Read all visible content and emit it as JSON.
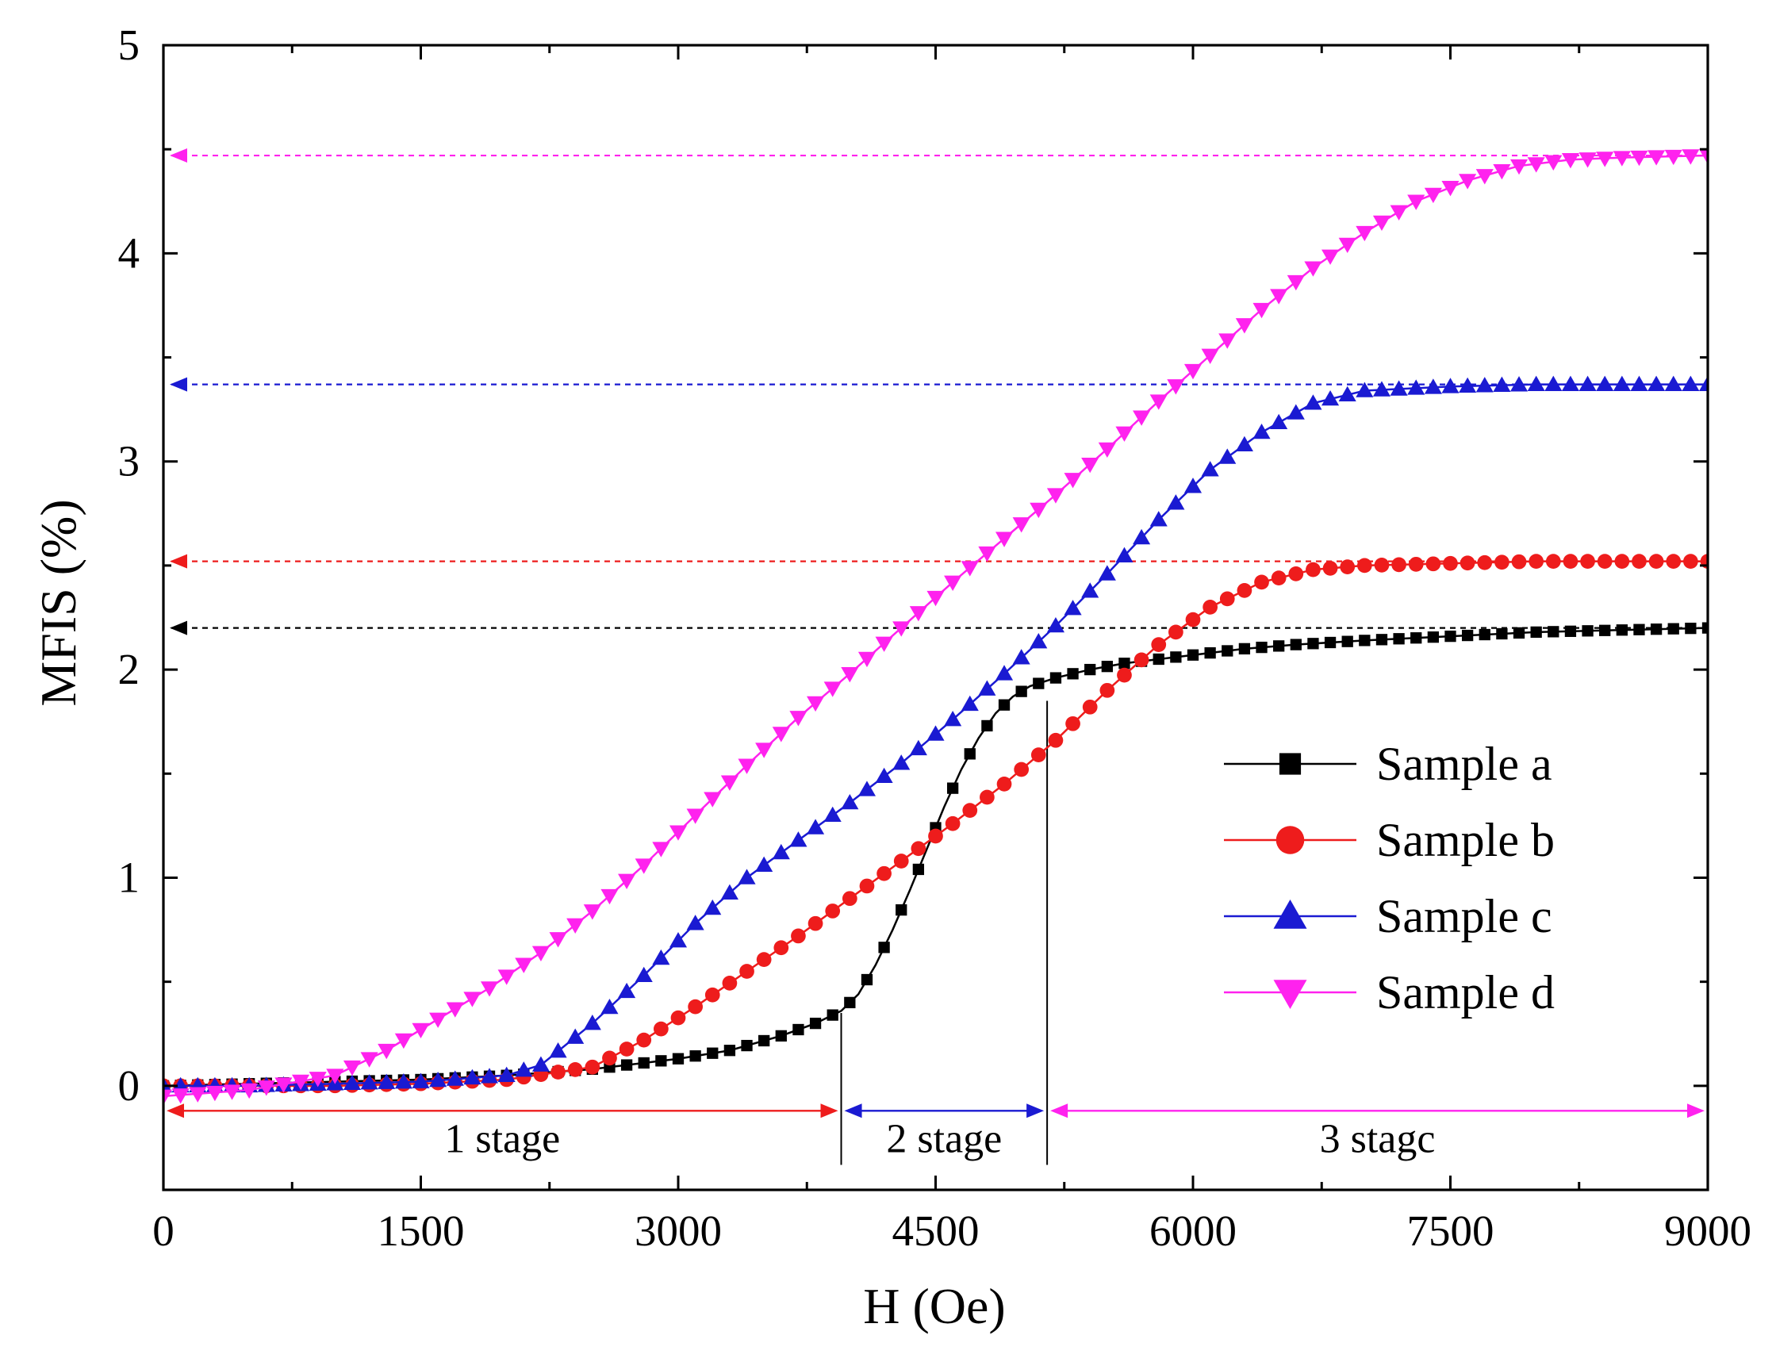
{
  "chart_data": {
    "type": "line",
    "title": "",
    "xlabel": "H (Oe)",
    "ylabel": "MFIS (%)",
    "xlim": [
      0,
      9000
    ],
    "ylim": [
      -0.5,
      5
    ],
    "xticks": [
      "0",
      "1500",
      "3000",
      "4500",
      "6000",
      "7500",
      "9000"
    ],
    "yticks": [
      "0",
      "1",
      "2",
      "3",
      "4",
      "5"
    ],
    "legend_position": "lower-right",
    "series": [
      {
        "name": "Sample a",
        "color": "#000000",
        "marker": "square",
        "x": [
          0,
          500,
          1000,
          1500,
          2000,
          2500,
          3000,
          3300,
          3600,
          3800,
          3950,
          4050,
          4150,
          4250,
          4350,
          4450,
          4550,
          4650,
          4750,
          4850,
          4950,
          5050,
          5200,
          5400,
          5600,
          5800,
          6000,
          6300,
          6600,
          7000,
          7500,
          8000,
          8500,
          9000
        ],
        "values": [
          0,
          0.01,
          0.02,
          0.03,
          0.05,
          0.08,
          0.13,
          0.17,
          0.24,
          0.3,
          0.36,
          0.44,
          0.58,
          0.75,
          0.94,
          1.14,
          1.34,
          1.52,
          1.67,
          1.79,
          1.87,
          1.92,
          1.96,
          2.0,
          2.03,
          2.05,
          2.07,
          2.1,
          2.12,
          2.14,
          2.16,
          2.18,
          2.19,
          2.2
        ]
      },
      {
        "name": "Sample b",
        "color": "#ee1c1c",
        "marker": "circle",
        "x": [
          0,
          500,
          1000,
          1500,
          2000,
          2500,
          2800,
          3100,
          3400,
          3700,
          4000,
          4300,
          4600,
          4900,
          5200,
          5500,
          5800,
          6100,
          6400,
          6700,
          7000,
          7500,
          8000,
          8500,
          9000
        ],
        "values": [
          0,
          0,
          0,
          0.01,
          0.03,
          0.09,
          0.22,
          0.38,
          0.55,
          0.72,
          0.9,
          1.08,
          1.26,
          1.45,
          1.66,
          1.9,
          2.12,
          2.3,
          2.42,
          2.48,
          2.5,
          2.51,
          2.52,
          2.52,
          2.52
        ]
      },
      {
        "name": "Sample c",
        "color": "#1a1ad2",
        "marker": "triangle-up",
        "x": [
          0,
          500,
          1000,
          1500,
          2000,
          2200,
          2500,
          2800,
          3100,
          3400,
          3700,
          4000,
          4300,
          4600,
          4900,
          5200,
          5500,
          5800,
          6100,
          6400,
          6700,
          7000,
          7500,
          8000,
          8500,
          9000
        ],
        "values": [
          0,
          0,
          0.01,
          0.02,
          0.05,
          0.1,
          0.3,
          0.53,
          0.78,
          1.0,
          1.18,
          1.36,
          1.55,
          1.76,
          1.98,
          2.21,
          2.46,
          2.72,
          2.96,
          3.14,
          3.28,
          3.34,
          3.36,
          3.37,
          3.37,
          3.37
        ]
      },
      {
        "name": "Sample d",
        "color": "#ff22ee",
        "marker": "triangle-down",
        "x": [
          0,
          500,
          1000,
          1300,
          1600,
          1900,
          2200,
          2500,
          2800,
          3100,
          3400,
          3700,
          4000,
          4300,
          4600,
          4900,
          5200,
          5500,
          5800,
          6100,
          6400,
          6700,
          7000,
          7300,
          7600,
          7900,
          8200,
          8500,
          9000
        ],
        "values": [
          -0.05,
          -0.02,
          0.05,
          0.17,
          0.32,
          0.47,
          0.64,
          0.84,
          1.06,
          1.3,
          1.54,
          1.77,
          1.98,
          2.2,
          2.42,
          2.63,
          2.84,
          3.06,
          3.29,
          3.51,
          3.73,
          3.93,
          4.1,
          4.25,
          4.35,
          4.42,
          4.45,
          4.46,
          4.47
        ]
      }
    ],
    "reference_lines": [
      {
        "series": "Sample a",
        "y": 2.2,
        "color": "#000000"
      },
      {
        "series": "Sample b",
        "y": 2.52,
        "color": "#ee1c1c"
      },
      {
        "series": "Sample c",
        "y": 3.37,
        "color": "#1a1ad2"
      },
      {
        "series": "Sample d",
        "y": 4.47,
        "color": "#ff22ee"
      }
    ],
    "stage_boundaries": [
      3950,
      5150
    ],
    "stages": [
      {
        "label": "1 stage",
        "from": 0,
        "to": 3950,
        "color": "#ee1c1c"
      },
      {
        "label": "2 stage",
        "from": 3950,
        "to": 5150,
        "color": "#1a1ad2"
      },
      {
        "label": "3 stagc",
        "from": 5150,
        "to": 9000,
        "color": "#ff22ee"
      }
    ],
    "stage_arrow_y": -0.12
  }
}
